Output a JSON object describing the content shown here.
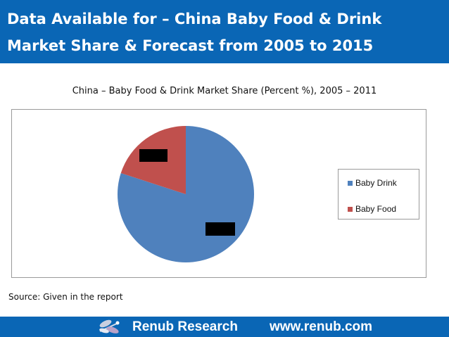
{
  "header": {
    "line1": "Data Available for – China Baby Food & Drink",
    "line2": "Market Share & Forecast from 2005 to 2015"
  },
  "chart_data": {
    "type": "pie",
    "title": "China – Baby Food & Drink Market Share (Percent %), 2005 – 2011",
    "categories": [
      "Baby Drink",
      "Baby Food"
    ],
    "values": [
      80,
      20
    ],
    "colors": [
      "#4f81bd",
      "#c0504d"
    ],
    "legend_position": "right",
    "data_labels_redacted": true
  },
  "source": "Source: Given in the report",
  "footer": {
    "brand": "Renub Research",
    "url": "www.renub.com",
    "logo_icon": "dragonfly-icon"
  },
  "colors": {
    "brand_blue": "#0a66b5"
  }
}
